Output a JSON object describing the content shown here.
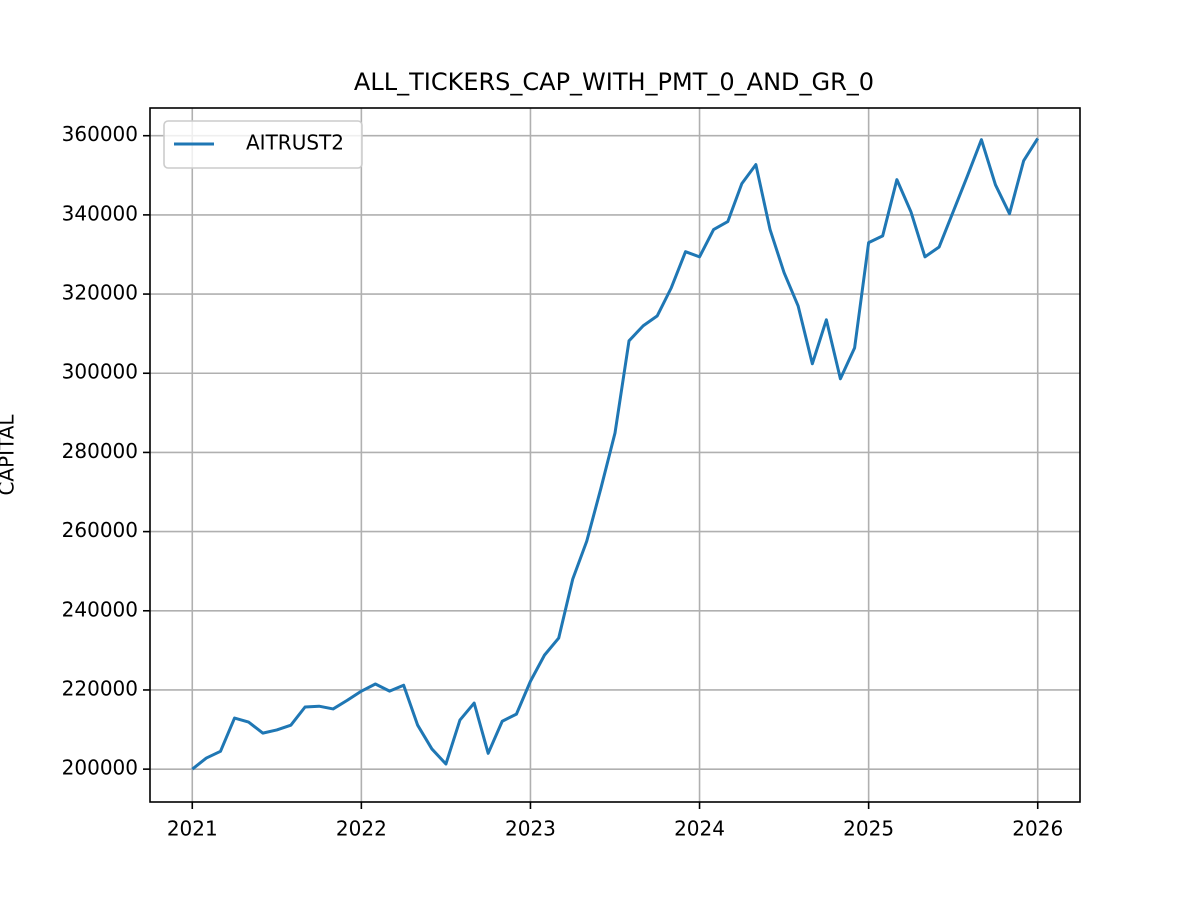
{
  "chart_data": {
    "type": "line",
    "title": "ALL_TICKERS_CAP_WITH_PMT_0_AND_GR_0",
    "y_label": "CAPITAL",
    "x": [
      2021.0,
      2021.083,
      2021.167,
      2021.25,
      2021.333,
      2021.417,
      2021.5,
      2021.583,
      2021.667,
      2021.75,
      2021.833,
      2021.917,
      2022.0,
      2022.083,
      2022.167,
      2022.25,
      2022.333,
      2022.417,
      2022.5,
      2022.583,
      2022.667,
      2022.75,
      2022.833,
      2022.917,
      2023.0,
      2023.083,
      2023.167,
      2023.25,
      2023.333,
      2023.417,
      2023.5,
      2023.583,
      2023.667,
      2023.75,
      2023.833,
      2023.917,
      2024.0,
      2024.083,
      2024.167,
      2024.25,
      2024.333,
      2024.417,
      2024.5,
      2024.583,
      2024.667,
      2024.75,
      2024.833,
      2024.917,
      2025.0,
      2025.083,
      2025.167,
      2025.25,
      2025.333,
      2025.417,
      2025.5,
      2025.583,
      2025.667,
      2025.75,
      2025.833,
      2025.917,
      2026.0
    ],
    "series": [
      {
        "name": "AITRUST2",
        "color": "#1f77b4",
        "values": [
          200000,
          202800,
          204500,
          212900,
          211900,
          209100,
          209900,
          211100,
          215700,
          215900,
          215200,
          217400,
          219700,
          221500,
          219700,
          221200,
          211100,
          205100,
          201300,
          212400,
          216700,
          204000,
          212100,
          213900,
          222200,
          228800,
          233100,
          248000,
          257600,
          271000,
          284900,
          308200,
          312000,
          314500,
          321600,
          330700,
          329400,
          336300,
          338300,
          347900,
          352700,
          336300,
          325400,
          317000,
          302400,
          313500,
          298600,
          306400,
          333000,
          334700,
          348900,
          340800,
          329400,
          331900,
          340800,
          349700,
          359000,
          347600,
          340300,
          353700,
          359300
        ]
      }
    ],
    "xlim": [
      2020.75,
      2026.25
    ],
    "xticks": [
      2021,
      2022,
      2023,
      2024,
      2025,
      2026
    ],
    "ylim": [
      191700,
      367000
    ],
    "yticks": [
      200000,
      220000,
      240000,
      260000,
      280000,
      300000,
      320000,
      340000,
      360000
    ],
    "grid": true,
    "legend": "upper left"
  }
}
